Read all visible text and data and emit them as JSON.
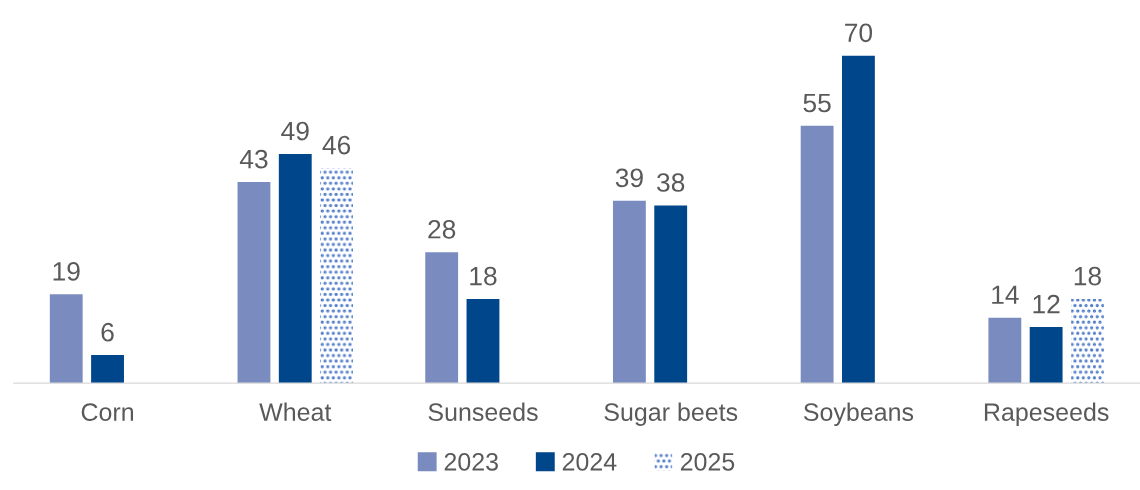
{
  "chart_data": {
    "type": "bar",
    "categories": [
      "Corn",
      "Wheat",
      "Sunseeds",
      "Sugar beets",
      "Soybeans",
      "Rapeseeds"
    ],
    "series": [
      {
        "name": "2023",
        "color": "#7a8cbf",
        "values": [
          19,
          43,
          28,
          39,
          55,
          14
        ]
      },
      {
        "name": "2024",
        "color": "#00468b",
        "values": [
          6,
          49,
          18,
          38,
          70,
          12
        ]
      },
      {
        "name": "2025",
        "color": "#4472c4",
        "line_style": "dotted",
        "values": [
          null,
          46,
          null,
          null,
          null,
          18
        ]
      }
    ],
    "data_labels": true,
    "legend": "bottom",
    "grid": false,
    "tick_labels": "x"
  }
}
